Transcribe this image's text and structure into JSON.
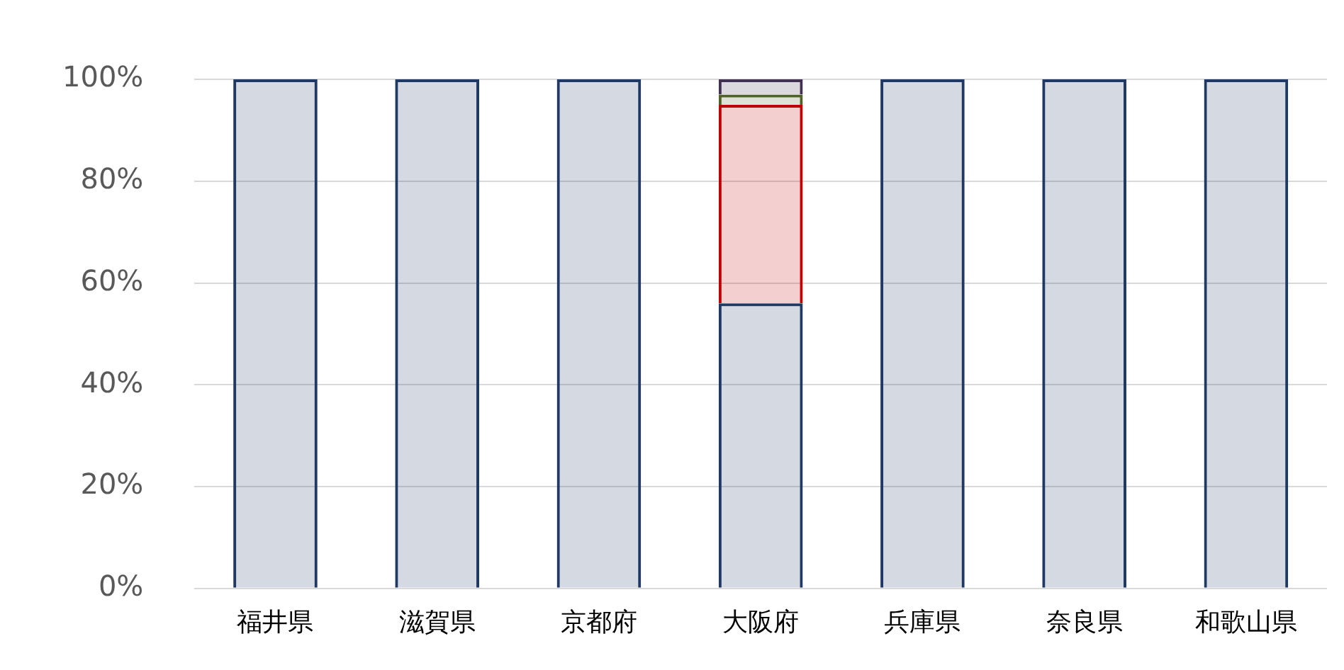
{
  "chart_data": {
    "type": "bar",
    "stacked": true,
    "categories": [
      "福井県",
      "滋賀県",
      "京都府",
      "大阪府",
      "兵庫県",
      "奈良県",
      "和歌山県"
    ],
    "series": [
      {
        "color": "#1f3864",
        "values": [
          100,
          100,
          100,
          56,
          100,
          100,
          100
        ]
      },
      {
        "color": "#c00000",
        "values": [
          0,
          0,
          0,
          39,
          0,
          0,
          0
        ]
      },
      {
        "color": "#4f6228",
        "values": [
          0,
          0,
          0,
          2,
          0,
          0,
          0
        ]
      },
      {
        "color": "#403151",
        "values": [
          0,
          0,
          0,
          3,
          0,
          0,
          0
        ]
      }
    ],
    "ylim": [
      0,
      100
    ],
    "yticks": [
      {
        "value": 0,
        "label": "0%"
      },
      {
        "value": 20,
        "label": "20%"
      },
      {
        "value": 40,
        "label": "40%"
      },
      {
        "value": 60,
        "label": "60%"
      },
      {
        "value": 80,
        "label": "80%"
      },
      {
        "value": 100,
        "label": "100%"
      }
    ],
    "grid": "y",
    "legend": false
  }
}
